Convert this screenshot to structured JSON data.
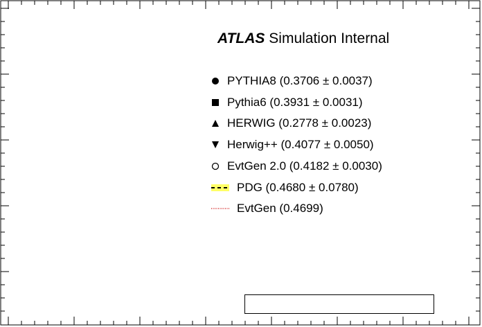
{
  "chart_data": {
    "type": "scatter",
    "title": "",
    "xlabel": "",
    "ylabel": "",
    "annotation": {
      "experiment": "ATLAS",
      "label": "Simulation Internal"
    },
    "legend_placement": "top-right",
    "colors": {
      "frame": "#000000",
      "pdg_band_fill": "#ffff66",
      "pdg_line": "#000000",
      "evtgen_line": "#cc0000"
    },
    "series": [
      {
        "name": "PYTHIA8",
        "value": 0.3706,
        "error": 0.0037,
        "label": "PYTHIA8 (0.3706 ± 0.0037)",
        "marker": "filled-circle"
      },
      {
        "name": "Pythia6",
        "value": 0.3931,
        "error": 0.0031,
        "label": "Pythia6 (0.3931 ± 0.0031)",
        "marker": "filled-square"
      },
      {
        "name": "HERWIG",
        "value": 0.2778,
        "error": 0.0023,
        "label": "HERWIG (0.2778 ± 0.0023)",
        "marker": "filled-triangle-up"
      },
      {
        "name": "Herwig++",
        "value": 0.4077,
        "error": 0.005,
        "label": "Herwig++ (0.4077 ± 0.0050)",
        "marker": "filled-triangle-down"
      },
      {
        "name": "EvtGen 2.0",
        "value": 0.4182,
        "error": 0.003,
        "label": "EvtGen 2.0 (0.4182 ± 0.0030)",
        "marker": "open-circle"
      },
      {
        "name": "PDG",
        "value": 0.468,
        "error": 0.078,
        "label": "PDG (0.4680 ± 0.0780)",
        "marker": "dashed-band"
      },
      {
        "name": "EvtGen",
        "value": 0.4699,
        "label": "EvtGen (0.4699)",
        "marker": "dotted-line"
      }
    ]
  }
}
